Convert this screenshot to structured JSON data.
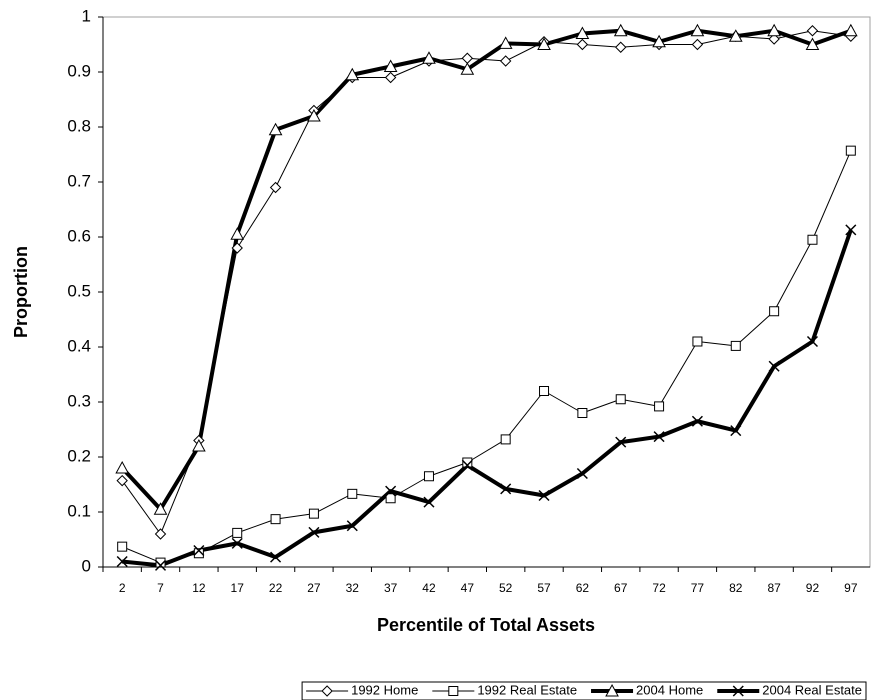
{
  "chart_data": {
    "type": "line",
    "x_label": "Percentile of Total Assets",
    "y_label": "Proportion",
    "categories": [
      "2",
      "7",
      "12",
      "17",
      "22",
      "27",
      "32",
      "37",
      "42",
      "47",
      "52",
      "57",
      "62",
      "67",
      "72",
      "77",
      "82",
      "87",
      "92",
      "97"
    ],
    "ylim": [
      0,
      1
    ],
    "yticks": [
      0,
      0.1,
      0.2,
      0.3,
      0.4,
      0.5,
      0.6,
      0.7,
      0.8,
      0.9,
      1
    ],
    "grid": false,
    "legend": "bottom",
    "series": [
      {
        "name": "1992 Home",
        "color": "#000000",
        "marker": "diamond",
        "line_width": 1,
        "values": [
          0.157,
          0.06,
          0.23,
          0.58,
          0.69,
          0.83,
          0.89,
          0.89,
          0.92,
          0.925,
          0.92,
          0.955,
          0.95,
          0.945,
          0.95,
          0.95,
          0.965,
          0.96,
          0.975,
          0.965
        ]
      },
      {
        "name": "1992 Real Estate",
        "color": "#000000",
        "marker": "square",
        "line_width": 1,
        "values": [
          0.037,
          0.008,
          0.025,
          0.062,
          0.087,
          0.097,
          0.133,
          0.125,
          0.165,
          0.19,
          0.232,
          0.32,
          0.28,
          0.305,
          0.292,
          0.41,
          0.402,
          0.465,
          0.595,
          0.757
        ]
      },
      {
        "name": "2004 Home",
        "color": "#000000",
        "marker": "triangle",
        "line_width": 4,
        "values": [
          0.18,
          0.105,
          0.22,
          0.605,
          0.795,
          0.82,
          0.895,
          0.91,
          0.925,
          0.905,
          0.952,
          0.95,
          0.97,
          0.975,
          0.955,
          0.975,
          0.965,
          0.975,
          0.95,
          0.975
        ]
      },
      {
        "name": "2004 Real Estate",
        "color": "#000000",
        "marker": "x",
        "line_width": 4,
        "values": [
          0.01,
          0.003,
          0.03,
          0.043,
          0.018,
          0.063,
          0.075,
          0.138,
          0.118,
          0.185,
          0.142,
          0.13,
          0.17,
          0.227,
          0.237,
          0.265,
          0.248,
          0.365,
          0.41,
          0.613
        ]
      }
    ]
  }
}
